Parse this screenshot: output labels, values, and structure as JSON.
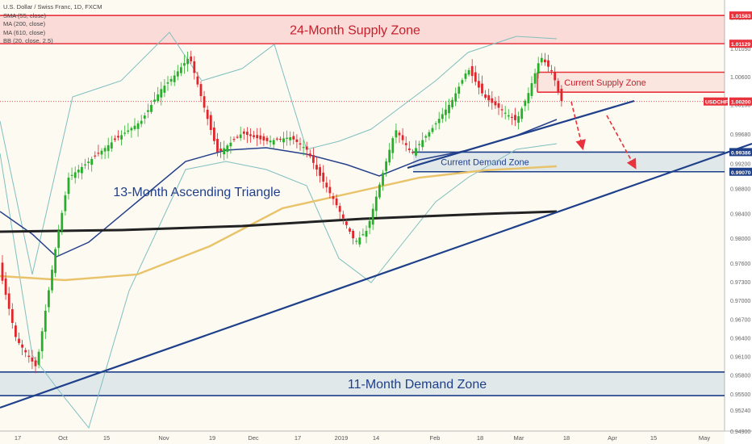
{
  "legend": {
    "title": "U.S. Dollar / Swiss Franc, 1D, FXCM",
    "indicators": [
      "SMA (55, close)",
      "MA (200, close)",
      "MA (610, close)",
      "BB (20, close, 2.5)"
    ]
  },
  "chart_data": {
    "type": "candlestick",
    "symbol": "USDCHF",
    "ylim": [
      0.949,
      1.0165
    ],
    "y_ticks": [
      1.0155,
      1.0105,
      1.006,
      1.0015,
      0.9968,
      0.992,
      0.988,
      0.984,
      0.98,
      0.976,
      0.973,
      0.97,
      0.967,
      0.964,
      0.961,
      0.958,
      0.955,
      0.9524,
      0.949
    ],
    "y_tick_labels": [
      "1.01550",
      "1.01050",
      "1.00600",
      "1.00150",
      "0.99680",
      "0.99200",
      "0.98800",
      "0.98400",
      "0.98000",
      "0.97600",
      "0.97300",
      "0.97000",
      "0.96700",
      "0.96400",
      "0.96100",
      "0.95800",
      "0.95500",
      "0.95240",
      "0.94900"
    ],
    "x_labels": [
      "17",
      "Oct",
      "15",
      "Nov",
      "19",
      "Dec",
      "17",
      "2019",
      "14",
      "Feb",
      "18",
      "Mar",
      "18",
      "Apr",
      "15",
      "May"
    ],
    "price_tags": [
      {
        "label": "1.01583",
        "value": 1.01583,
        "color": "#e8323c"
      },
      {
        "label": "1.01129",
        "value": 1.01129,
        "color": "#e8323c"
      },
      {
        "label": "USDCHF",
        "value": 1.002,
        "color": "#e8323c"
      },
      {
        "label": "1.00200",
        "value": 1.002,
        "color": "#e8323c"
      },
      {
        "label": "0.99386",
        "value": 0.99386,
        "color": "#1e3f8a"
      },
      {
        "label": "0.99070",
        "value": 0.9907,
        "color": "#1e3f8a"
      }
    ],
    "zones": [
      {
        "label": "24-Month Supply Zone",
        "from": 1.01129,
        "to": 1.01583,
        "kind": "supply"
      },
      {
        "label": "Current Supply Zone",
        "from": 1.0035,
        "to": 1.0067,
        "kind": "supply"
      },
      {
        "label": "Current Demand Zone",
        "from": 0.9907,
        "to": 0.99386,
        "kind": "demand"
      },
      {
        "label": "11-Month Demand Zone",
        "from": 0.9547,
        "to": 0.9585,
        "kind": "demand"
      }
    ],
    "annotations": [
      "13-Month Ascending Triangle"
    ],
    "colors": {
      "up": "#26b02a",
      "down": "#e0262c",
      "supply": "#e8323c",
      "demand": "#1e3f8a",
      "ma200": "#e8c36a",
      "ma610": "#222222",
      "sma55": "#27408b",
      "bb": "#7fbfbf"
    }
  }
}
